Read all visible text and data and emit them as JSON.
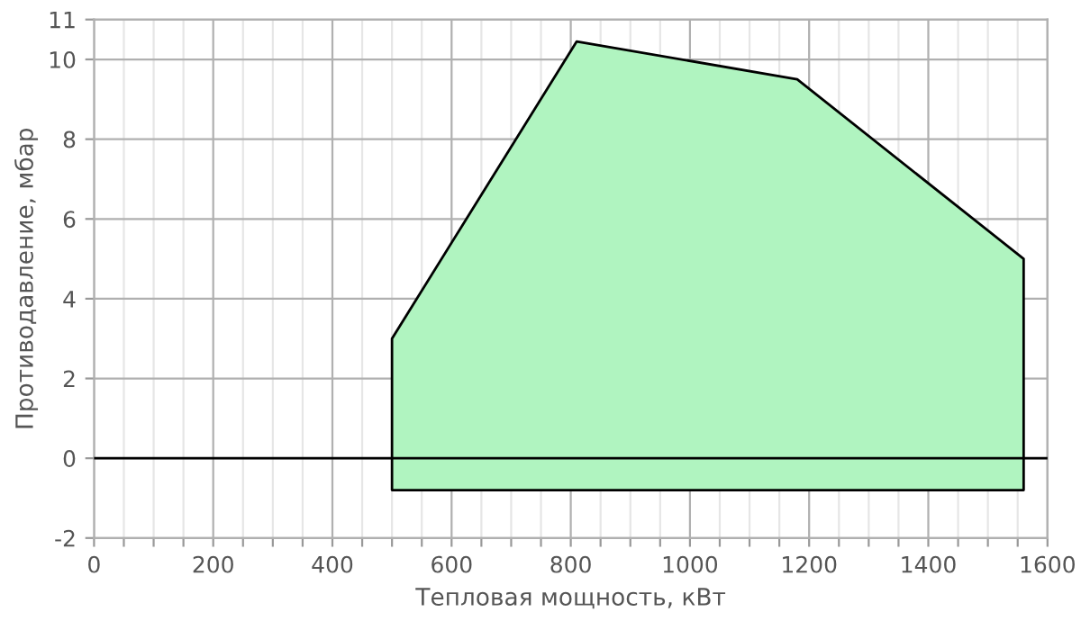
{
  "chart_data": {
    "type": "area",
    "xlabel": "Тепловая мощность, кВт",
    "ylabel": "Противодавление, мбар",
    "xlim": [
      0,
      1600
    ],
    "ylim": [
      -2,
      11
    ],
    "xticks": [
      0,
      {
        "value": 50,
        "label": null
      },
      {
        "value": 100,
        "label": null
      },
      {
        "value": 150,
        "label": null
      },
      200,
      {
        "value": 250,
        "label": null
      },
      {
        "value": 300,
        "label": null
      },
      {
        "value": 350,
        "label": null
      },
      400,
      {
        "value": 450,
        "label": null
      },
      {
        "value": 500,
        "label": null
      },
      {
        "value": 550,
        "label": null
      },
      600,
      {
        "value": 650,
        "label": null
      },
      {
        "value": 700,
        "label": null
      },
      {
        "value": 750,
        "label": null
      },
      800,
      {
        "value": 850,
        "label": null
      },
      {
        "value": 900,
        "label": null
      },
      {
        "value": 950,
        "label": null
      },
      1000,
      {
        "value": 1050,
        "label": null
      },
      {
        "value": 1100,
        "label": null
      },
      {
        "value": 1150,
        "label": null
      },
      1200,
      {
        "value": 1250,
        "label": null
      },
      {
        "value": 1300,
        "label": null
      },
      {
        "value": 1350,
        "label": null
      },
      1400,
      {
        "value": 1450,
        "label": null
      },
      {
        "value": 1500,
        "label": null
      },
      {
        "value": 1550,
        "label": null
      },
      1600
    ],
    "yticks": [
      -2,
      0,
      2,
      4,
      6,
      8,
      10,
      11
    ],
    "grid": true,
    "ref_lines": [
      {
        "axis": "y",
        "value": 0,
        "color": "#000000"
      }
    ],
    "series": [
      {
        "color": "#b0f4c0",
        "x": [
          500,
          500,
          810,
          1180,
          1560,
          1560
        ],
        "values": [
          -0.8,
          3,
          10.45,
          9.5,
          5,
          -0.8
        ]
      }
    ]
  }
}
